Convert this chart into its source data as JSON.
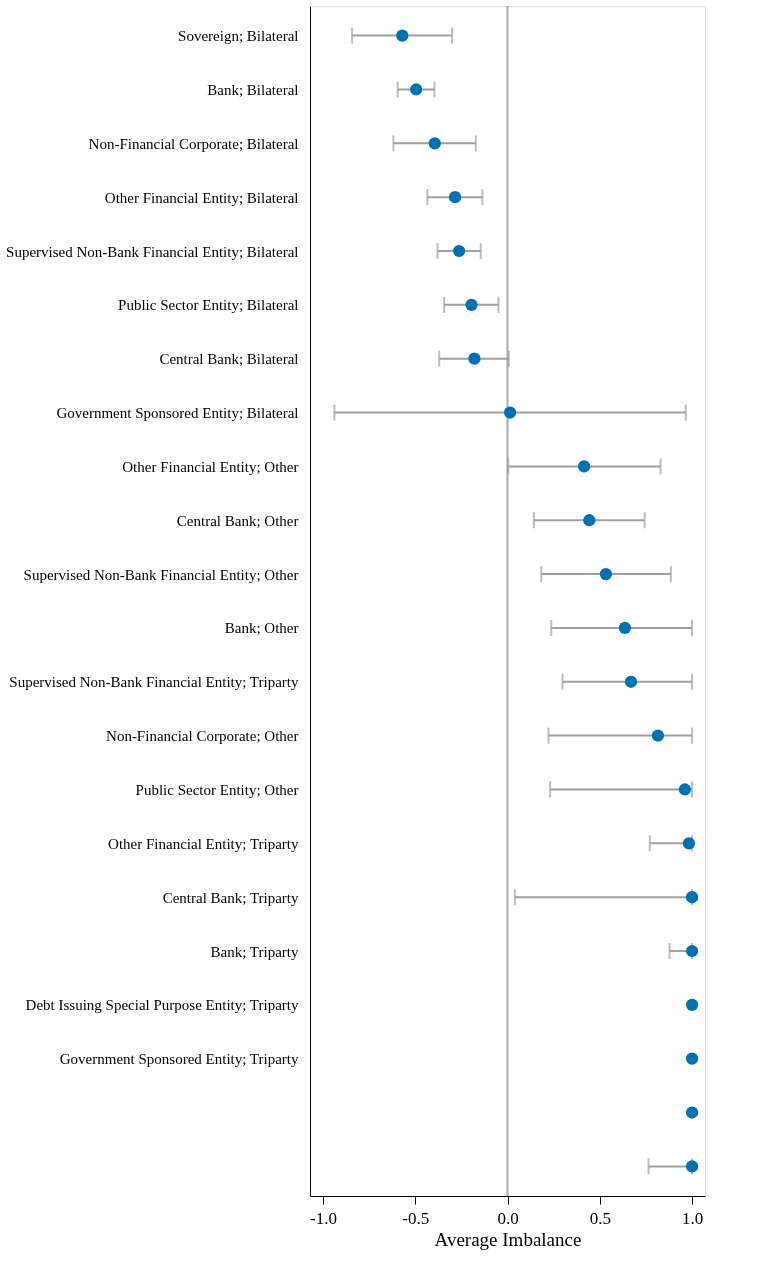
{
  "chart_data": {
    "type": "scatter",
    "orientation": "horizontal",
    "xlabel": "Average Imbalance",
    "categories": [
      "Sovereign; Bilateral",
      "Bank; Bilateral",
      "Non-Financial Corporate; Bilateral",
      "Other Financial Entity; Bilateral",
      "Supervised Non-Bank Financial Entity; Bilateral",
      "Public Sector Entity; Bilateral",
      "Central Bank; Bilateral",
      "Government Sponsored Entity; Bilateral",
      "Other Financial Entity; Other",
      "Central Bank; Other",
      "Supervised Non-Bank Financial Entity; Other",
      "Bank; Other",
      "Supervised Non-Bank Financial Entity; Triparty",
      "Non-Financial Corporate; Other",
      "Public Sector Entity; Other",
      "Other Financial Entity; Triparty",
      "Central Bank; Triparty",
      "Bank; Triparty",
      "Debt Issuing Special Purpose Entity; Triparty",
      "Government Sponsored Entity; Triparty",
      null,
      null
    ],
    "series": [
      {
        "color": "#0072b2",
        "values": [
          -0.57,
          -0.495,
          -0.394,
          -0.284,
          -0.262,
          -0.195,
          -0.179,
          0.014,
          0.415,
          0.443,
          0.533,
          0.636,
          0.669,
          0.815,
          0.961,
          0.983,
          1.0,
          1.0,
          1.0,
          1.0,
          1.0,
          1.0
        ],
        "errors": [
          [
            -0.842,
            -0.3
          ],
          [
            -0.595,
            -0.396
          ],
          [
            -0.618,
            -0.172
          ],
          [
            -0.434,
            -0.136
          ],
          [
            -0.379,
            -0.145
          ],
          [
            -0.343,
            -0.049
          ],
          [
            -0.37,
            0.007
          ],
          [
            -0.938,
            0.966
          ],
          [
            0.004,
            0.829
          ],
          [
            0.143,
            0.743
          ],
          [
            0.183,
            0.885
          ],
          [
            0.237,
            1.0
          ],
          [
            0.298,
            1.0
          ],
          [
            0.222,
            1.0
          ],
          [
            0.231,
            1.0
          ],
          [
            0.771,
            1.0
          ],
          [
            0.04,
            1.0
          ],
          [
            0.878,
            1.0
          ],
          null,
          null,
          null,
          [
            0.764,
            1.0
          ]
        ]
      }
    ],
    "xlim": [
      -1.07,
      1.07
    ],
    "xticks": [
      {
        "value": -1,
        "label": "-1.0"
      },
      {
        "value": -0.5,
        "label": "-0.5"
      },
      {
        "value": 0,
        "label": "0.0"
      },
      {
        "value": 0.5,
        "label": "0.5"
      },
      {
        "value": 1,
        "label": "1.0"
      }
    ],
    "ref_lines": [
      {
        "axis": "x",
        "value": 0,
        "color": "#aaaaaa"
      }
    ],
    "grid": false,
    "marker": "circle"
  }
}
